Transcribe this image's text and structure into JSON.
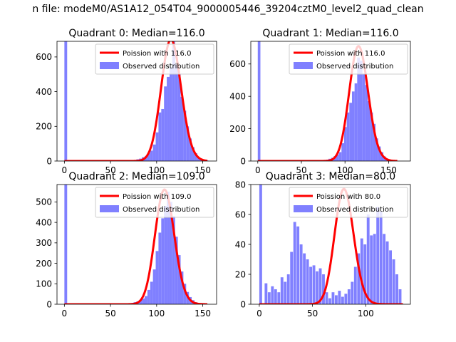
{
  "window": {
    "title": "n file: modeM0/AS1A12_054T04_9000005446_39204cztM0_level2_quad_clean"
  },
  "colors": {
    "hist": "#8080ff",
    "poisson": "#ff0000",
    "axes": "#000000",
    "background": "#ffffff"
  },
  "chart_data": [
    {
      "type": "bar",
      "title": "Quadrant 0: Median=116.0",
      "median": 116.0,
      "xlabel": "",
      "ylabel": "",
      "xlim": [
        -8,
        165
      ],
      "ylim": [
        0,
        690
      ],
      "xticks": [
        0,
        50,
        100,
        150
      ],
      "yticks": [
        0,
        200,
        400,
        600
      ],
      "legend_position": "top-right",
      "grid": false,
      "bin_width": 3,
      "series": [
        {
          "name": "Observed distribution",
          "kind": "histogram",
          "bins": [
            [
              0,
              690
            ],
            [
              72,
              2
            ],
            [
              75,
              5
            ],
            [
              78,
              10
            ],
            [
              81,
              14
            ],
            [
              84,
              22
            ],
            [
              87,
              28
            ],
            [
              90,
              45
            ],
            [
              93,
              60
            ],
            [
              96,
              95
            ],
            [
              99,
              165
            ],
            [
              102,
              280
            ],
            [
              105,
              300
            ],
            [
              108,
              430
            ],
            [
              111,
              485
            ],
            [
              114,
              540
            ],
            [
              117,
              690
            ],
            [
              120,
              560
            ],
            [
              123,
              500
            ],
            [
              126,
              370
            ],
            [
              129,
              290
            ],
            [
              132,
              200
            ],
            [
              135,
              130
            ],
            [
              138,
              80
            ],
            [
              141,
              45
            ],
            [
              144,
              22
            ],
            [
              147,
              12
            ],
            [
              150,
              6
            ],
            [
              153,
              3
            ]
          ]
        },
        {
          "name": "Poission with 116.0",
          "kind": "poisson",
          "lambda": 116.0,
          "peak": 700,
          "range": [
            0,
            155
          ]
        }
      ]
    },
    {
      "type": "bar",
      "title": "Quadrant 1: Median=116.0",
      "median": 116.0,
      "xlabel": "",
      "ylabel": "",
      "xlim": [
        -8,
        175
      ],
      "ylim": [
        0,
        740
      ],
      "xticks": [
        0,
        50,
        100,
        150
      ],
      "yticks": [
        0,
        200,
        400,
        600
      ],
      "legend_position": "top-right",
      "grid": false,
      "bin_width": 3,
      "series": [
        {
          "name": "Observed distribution",
          "kind": "histogram",
          "bins": [
            [
              0,
              740
            ],
            [
              72,
              2
            ],
            [
              75,
              4
            ],
            [
              78,
              8
            ],
            [
              81,
              14
            ],
            [
              84,
              20
            ],
            [
              87,
              30
            ],
            [
              90,
              40
            ],
            [
              93,
              55
            ],
            [
              96,
              110
            ],
            [
              99,
              210
            ],
            [
              102,
              300
            ],
            [
              105,
              360
            ],
            [
              108,
              430
            ],
            [
              111,
              480
            ],
            [
              114,
              640
            ],
            [
              117,
              620
            ],
            [
              120,
              540
            ],
            [
              123,
              470
            ],
            [
              126,
              370
            ],
            [
              129,
              300
            ],
            [
              132,
              230
            ],
            [
              135,
              140
            ],
            [
              138,
              90
            ],
            [
              141,
              55
            ],
            [
              144,
              28
            ],
            [
              147,
              14
            ],
            [
              150,
              8
            ],
            [
              153,
              4
            ]
          ]
        },
        {
          "name": "Poission with 116.0",
          "kind": "poisson",
          "lambda": 116.0,
          "peak": 710,
          "range": [
            0,
            160
          ]
        }
      ]
    },
    {
      "type": "bar",
      "title": "Quadrant 2: Median=109.0",
      "median": 109.0,
      "xlabel": "",
      "ylabel": "",
      "xlim": [
        -8,
        165
      ],
      "ylim": [
        0,
        585
      ],
      "xticks": [
        0,
        50,
        100,
        150
      ],
      "yticks": [
        0,
        100,
        200,
        300,
        400,
        500
      ],
      "legend_position": "top-right",
      "grid": false,
      "bin_width": 3,
      "series": [
        {
          "name": "Observed distribution",
          "kind": "histogram",
          "bins": [
            [
              0,
              585
            ],
            [
              66,
              2
            ],
            [
              69,
              4
            ],
            [
              72,
              6
            ],
            [
              75,
              10
            ],
            [
              78,
              14
            ],
            [
              81,
              20
            ],
            [
              84,
              28
            ],
            [
              87,
              40
            ],
            [
              90,
              70
            ],
            [
              93,
              110
            ],
            [
              96,
              170
            ],
            [
              99,
              260
            ],
            [
              102,
              350
            ],
            [
              105,
              420
            ],
            [
              108,
              480
            ],
            [
              111,
              550
            ],
            [
              114,
              500
            ],
            [
              117,
              430
            ],
            [
              120,
              330
            ],
            [
              123,
              240
            ],
            [
              126,
              160
            ],
            [
              129,
              100
            ],
            [
              132,
              60
            ],
            [
              135,
              35
            ],
            [
              138,
              20
            ],
            [
              141,
              10
            ],
            [
              144,
              5
            ],
            [
              147,
              2
            ]
          ]
        },
        {
          "name": "Poission with 109.0",
          "kind": "poisson",
          "lambda": 109.0,
          "peak": 560,
          "range": [
            0,
            155
          ]
        }
      ]
    },
    {
      "type": "bar",
      "title": "Quadrant 3: Median=80.0",
      "median": 80.0,
      "xlabel": "",
      "ylabel": "",
      "xlim": [
        -8,
        142
      ],
      "ylim": [
        0,
        80
      ],
      "xticks": [
        0,
        50,
        100
      ],
      "yticks": [
        0,
        20,
        40,
        60,
        80
      ],
      "legend_position": "top-right",
      "grid": false,
      "bin_width": 2.6,
      "series": [
        {
          "name": "Observed distribution",
          "kind": "histogram",
          "bins": [
            [
              0,
              80
            ],
            [
              5,
              14
            ],
            [
              8,
              8
            ],
            [
              11,
              12
            ],
            [
              14,
              10
            ],
            [
              17,
              8
            ],
            [
              20,
              18
            ],
            [
              23,
              15
            ],
            [
              26,
              20
            ],
            [
              29,
              35
            ],
            [
              32,
              55
            ],
            [
              35,
              52
            ],
            [
              38,
              40
            ],
            [
              41,
              34
            ],
            [
              44,
              30
            ],
            [
              47,
              25
            ],
            [
              50,
              26
            ],
            [
              53,
              22
            ],
            [
              56,
              24
            ],
            [
              59,
              20
            ],
            [
              62,
              8
            ],
            [
              65,
              4
            ],
            [
              68,
              8
            ],
            [
              71,
              6
            ],
            [
              74,
              9
            ],
            [
              77,
              5
            ],
            [
              80,
              7
            ],
            [
              83,
              10
            ],
            [
              86,
              15
            ],
            [
              89,
              25
            ],
            [
              92,
              34
            ],
            [
              95,
              44
            ],
            [
              98,
              40
            ],
            [
              101,
              60
            ],
            [
              104,
              46
            ],
            [
              107,
              47
            ],
            [
              110,
              65
            ],
            [
              113,
              62
            ],
            [
              116,
              47
            ],
            [
              119,
              42
            ],
            [
              122,
              36
            ],
            [
              125,
              30
            ],
            [
              128,
              20
            ],
            [
              131,
              10
            ]
          ]
        },
        {
          "name": "Poission with 80.0",
          "kind": "poisson",
          "lambda": 80.0,
          "peak": 77,
          "range": [
            0,
            135
          ]
        }
      ]
    }
  ]
}
